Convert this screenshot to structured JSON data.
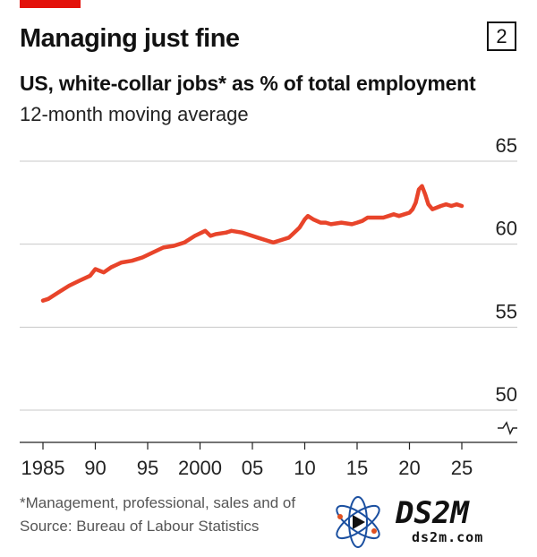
{
  "header": {
    "title": "Managing just fine",
    "chart_number": "2",
    "subtitle": "US, white-collar jobs* as % of total employment",
    "subsubtitle": "12-month moving average"
  },
  "footer": {
    "footnote": "*Management, professional, sales and of",
    "source": "Source: Bureau of Labour Statistics"
  },
  "watermark": {
    "logo_text": "DS2M",
    "logo_sub": "ds2m.com"
  },
  "colors": {
    "line": "#e8442a",
    "brand_red": "#e3120b",
    "grid": "#c8c8c8"
  },
  "chart_data": {
    "type": "line",
    "title": "Managing just fine",
    "subtitle": "US, white-collar jobs* as % of total employment",
    "ylabel": "",
    "xlabel": "",
    "ylim": [
      50,
      65
    ],
    "xlim": [
      1985,
      2025
    ],
    "y_axis_position": "right",
    "y_axis_break": true,
    "grid": true,
    "x_ticks": [
      1985,
      1990,
      1995,
      2000,
      2005,
      2010,
      2015,
      2020,
      2025
    ],
    "x_tick_labels": [
      "1985",
      "90",
      "95",
      "2000",
      "05",
      "10",
      "15",
      "20",
      "25"
    ],
    "y_ticks": [
      50,
      55,
      60,
      65
    ],
    "y_tick_labels": [
      "50",
      "55",
      "60",
      "65"
    ],
    "series": [
      {
        "name": "",
        "x": [
          1985.0,
          1985.5,
          1986.5,
          1987.5,
          1988.5,
          1989.5,
          1990.0,
          1990.8,
          1991.5,
          1992.5,
          1993.5,
          1994.5,
          1995.5,
          1996.5,
          1997.5,
          1998.5,
          1999.5,
          2000.5,
          2001.0,
          2001.5,
          2002.5,
          2003.0,
          2004.0,
          2004.5,
          2005.5,
          2006.5,
          2007.0,
          2008.0,
          2008.5,
          2009.0,
          2009.5,
          2010.0,
          2010.3,
          2010.8,
          2011.5,
          2012.0,
          2012.5,
          2013.5,
          2014.5,
          2015.0,
          2015.5,
          2016.0,
          2016.5,
          2017.5,
          2018.0,
          2018.5,
          2019.0,
          2019.5,
          2020.0,
          2020.3,
          2020.6,
          2020.9,
          2021.2,
          2021.5,
          2021.8,
          2022.2,
          2022.6,
          2023.0,
          2023.5,
          2024.0,
          2024.5,
          2025.0
        ],
        "y": [
          56.6,
          56.7,
          57.1,
          57.5,
          57.8,
          58.1,
          58.5,
          58.3,
          58.6,
          58.9,
          59.0,
          59.2,
          59.5,
          59.8,
          59.9,
          60.1,
          60.5,
          60.8,
          60.5,
          60.6,
          60.7,
          60.8,
          60.7,
          60.6,
          60.4,
          60.2,
          60.1,
          60.3,
          60.4,
          60.7,
          61.0,
          61.5,
          61.7,
          61.5,
          61.3,
          61.3,
          61.2,
          61.3,
          61.2,
          61.3,
          61.4,
          61.6,
          61.6,
          61.6,
          61.7,
          61.8,
          61.7,
          61.8,
          61.9,
          62.1,
          62.5,
          63.3,
          63.5,
          63.0,
          62.4,
          62.1,
          62.2,
          62.3,
          62.4,
          62.3,
          62.4,
          62.3
        ]
      }
    ]
  }
}
